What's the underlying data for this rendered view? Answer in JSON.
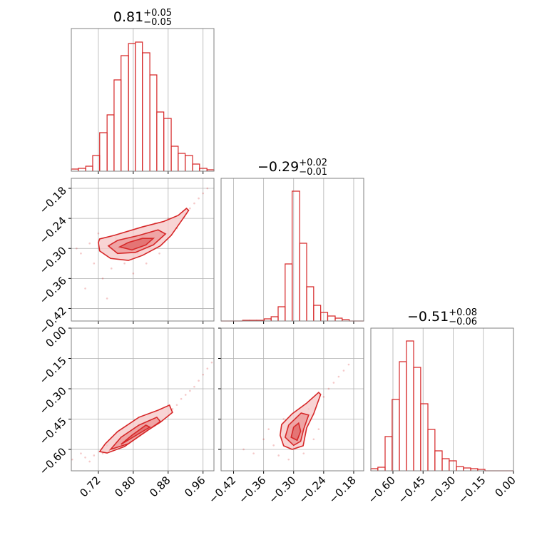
{
  "chart_data": [
    {
      "type": "histogram",
      "title": {
        "value": "0.81",
        "upper": "+0.05",
        "lower": "−0.05"
      },
      "bins": [
        0.658,
        0.674,
        0.691,
        0.707,
        0.723,
        0.74,
        0.756,
        0.772,
        0.789,
        0.805,
        0.821,
        0.838,
        0.854,
        0.87,
        0.887,
        0.903,
        0.919,
        0.936,
        0.952,
        0.969,
        0.985
      ],
      "counts": [
        3,
        4,
        7,
        22,
        54,
        79,
        128,
        162,
        179,
        181,
        166,
        135,
        83,
        74,
        35,
        25,
        22,
        10,
        4,
        2
      ],
      "xlim": [
        0.658,
        0.985
      ],
      "xticks": [
        0.72,
        0.8,
        0.88,
        0.96
      ],
      "ylim": [
        0,
        200
      ],
      "color": "#d62728",
      "grid": true,
      "xtick_labels": false,
      "ytick_labels": false
    },
    {
      "type": "contour",
      "xlim": [
        0.658,
        0.985
      ],
      "xticks": [
        0.72,
        0.8,
        0.88,
        0.96
      ],
      "ylim": [
        -0.445,
        -0.16
      ],
      "yticks": [
        {
          "value": -0.18,
          "label": "−0.18"
        },
        {
          "value": -0.24,
          "label": "−0.24"
        },
        {
          "value": -0.3,
          "label": "−0.30"
        },
        {
          "value": -0.36,
          "label": "−0.36"
        },
        {
          "value": -0.42,
          "label": "−0.42"
        }
      ],
      "points": {
        "x": [
          0.68,
          0.7,
          0.71,
          0.69,
          0.73,
          0.75,
          0.78,
          0.8,
          0.83,
          0.86,
          0.9,
          0.93,
          0.95,
          0.96,
          0.72,
          0.76,
          0.85,
          0.88,
          0.94,
          0.74,
          0.97,
          0.81,
          0.79,
          0.67
        ],
        "y": [
          -0.31,
          -0.29,
          -0.33,
          -0.38,
          -0.36,
          -0.34,
          -0.33,
          -0.35,
          -0.33,
          -0.31,
          -0.26,
          -0.22,
          -0.2,
          -0.19,
          -0.27,
          -0.28,
          -0.25,
          -0.24,
          -0.21,
          -0.4,
          -0.18,
          -0.31,
          -0.3,
          -0.3
        ]
      },
      "contours": [
        {
          "x": [
            0.72,
            0.723,
            0.748,
            0.789,
            0.821,
            0.862,
            0.887,
            0.916,
            0.927,
            0.922,
            0.903,
            0.87,
            0.821,
            0.756,
            0.723
          ],
          "y": [
            -0.288,
            -0.305,
            -0.32,
            -0.324,
            -0.314,
            -0.295,
            -0.274,
            -0.238,
            -0.224,
            -0.22,
            -0.234,
            -0.246,
            -0.257,
            -0.274,
            -0.281
          ]
        },
        {
          "x": [
            0.743,
            0.764,
            0.805,
            0.846,
            0.874,
            0.857,
            0.813,
            0.764
          ],
          "y": [
            -0.295,
            -0.31,
            -0.308,
            -0.293,
            -0.271,
            -0.263,
            -0.274,
            -0.284
          ]
        },
        {
          "x": [
            0.769,
            0.797,
            0.829,
            0.846,
            0.821,
            0.789
          ],
          "y": [
            -0.297,
            -0.303,
            -0.293,
            -0.28,
            -0.28,
            -0.288
          ]
        }
      ],
      "color": "#d62728",
      "grid": true,
      "xtick_labels": false,
      "ytick_labels": true
    },
    {
      "type": "histogram",
      "title": {
        "value": "−0.29",
        "upper": "+0.02",
        "lower": "−0.01"
      },
      "bins": [
        -0.445,
        -0.431,
        -0.416,
        -0.402,
        -0.388,
        -0.374,
        -0.359,
        -0.345,
        -0.331,
        -0.317,
        -0.303,
        -0.288,
        -0.274,
        -0.26,
        -0.246,
        -0.232,
        -0.217,
        -0.203,
        -0.189,
        -0.174,
        -0.16
      ],
      "counts": [
        0,
        0,
        0,
        1,
        1,
        1,
        3,
        6,
        20,
        80,
        182,
        109,
        48,
        22,
        12,
        7,
        4,
        2,
        0,
        0
      ],
      "xlim": [
        -0.445,
        -0.16
      ],
      "xticks": [
        -0.42,
        -0.36,
        -0.3,
        -0.24,
        -0.18
      ],
      "ylim": [
        0,
        200
      ],
      "color": "#d62728",
      "grid": true,
      "xtick_labels": false,
      "ytick_labels": false
    },
    {
      "type": "contour",
      "xlim": [
        0.658,
        0.985
      ],
      "xticks": [
        0.72,
        {
          "value": 0.8,
          "label": "0.80"
        },
        0.88,
        0.96
      ],
      "ylim": [
        -0.706,
        0
      ],
      "yticks": [
        {
          "value": 0,
          "label": "0.00"
        },
        {
          "value": -0.15,
          "label": "−0.15"
        },
        {
          "value": -0.3,
          "label": "−0.30"
        },
        {
          "value": -0.45,
          "label": "−0.45"
        },
        {
          "value": -0.6,
          "label": "−0.60"
        }
      ],
      "points": {
        "x": [
          0.66,
          0.69,
          0.71,
          0.7,
          0.73,
          0.9,
          0.91,
          0.92,
          0.93,
          0.94,
          0.95,
          0.96,
          0.97,
          0.98,
          0.68,
          0.89,
          0.74,
          0.85
        ],
        "y": [
          -0.65,
          -0.64,
          -0.63,
          -0.66,
          -0.62,
          -0.38,
          -0.35,
          -0.33,
          -0.31,
          -0.29,
          -0.26,
          -0.23,
          -0.2,
          -0.17,
          -0.62,
          -0.4,
          -0.58,
          -0.48
        ]
      },
      "contours": [
        {
          "x": [
            0.723,
            0.74,
            0.78,
            0.821,
            0.862,
            0.89,
            0.883,
            0.857,
            0.813,
            0.764,
            0.736
          ],
          "y": [
            -0.611,
            -0.618,
            -0.586,
            -0.522,
            -0.466,
            -0.417,
            -0.381,
            -0.406,
            -0.441,
            -0.512,
            -0.572
          ]
        },
        {
          "x": [
            0.748,
            0.789,
            0.829,
            0.862,
            0.854,
            0.813,
            0.772
          ],
          "y": [
            -0.6,
            -0.572,
            -0.512,
            -0.462,
            -0.441,
            -0.48,
            -0.54
          ]
        },
        {
          "x": [
            0.772,
            0.813,
            0.838,
            0.829,
            0.797
          ],
          "y": [
            -0.575,
            -0.522,
            -0.49,
            -0.48,
            -0.53
          ]
        }
      ],
      "color": "#d62728",
      "grid": true,
      "xtick_labels": true,
      "ytick_labels": true
    },
    {
      "type": "contour",
      "xlim": [
        -0.445,
        -0.16
      ],
      "xticks": [
        {
          "value": -0.42,
          "label": "−0.42"
        },
        {
          "value": -0.36,
          "label": "−0.36"
        },
        {
          "value": -0.3,
          "label": "−0.30"
        },
        {
          "value": -0.24,
          "label": "−0.24"
        },
        {
          "value": -0.18,
          "label": "−0.18"
        }
      ],
      "ylim": [
        -0.706,
        0
      ],
      "yticks": [
        0,
        -0.15,
        -0.3,
        -0.45,
        -0.6
      ],
      "points": {
        "x": [
          -0.4,
          -0.36,
          -0.34,
          -0.33,
          -0.31,
          -0.35,
          -0.28,
          -0.26,
          -0.24,
          -0.23,
          -0.22,
          -0.21,
          -0.2,
          -0.19,
          -0.38,
          -0.32,
          -0.27,
          -0.25
        ],
        "y": [
          -0.6,
          -0.55,
          -0.58,
          -0.63,
          -0.65,
          -0.5,
          -0.62,
          -0.55,
          -0.34,
          -0.3,
          -0.27,
          -0.24,
          -0.21,
          -0.18,
          -0.62,
          -0.45,
          -0.4,
          -0.5
        ]
      },
      "contours": [
        {
          "x": [
            -0.327,
            -0.32,
            -0.303,
            -0.281,
            -0.274,
            -0.26,
            -0.246,
            -0.25,
            -0.274,
            -0.303,
            -0.324
          ],
          "y": [
            -0.53,
            -0.582,
            -0.6,
            -0.582,
            -0.494,
            -0.424,
            -0.328,
            -0.318,
            -0.371,
            -0.424,
            -0.477
          ]
        },
        {
          "x": [
            -0.317,
            -0.3,
            -0.286,
            -0.28,
            -0.27,
            -0.285,
            -0.31
          ],
          "y": [
            -0.54,
            -0.58,
            -0.56,
            -0.5,
            -0.43,
            -0.42,
            -0.48
          ]
        },
        {
          "x": [
            -0.305,
            -0.293,
            -0.286,
            -0.29,
            -0.3
          ],
          "y": [
            -0.54,
            -0.555,
            -0.51,
            -0.47,
            -0.49
          ]
        }
      ],
      "color": "#d62728",
      "grid": true,
      "xtick_labels": true,
      "ytick_labels": false
    },
    {
      "type": "histogram",
      "title": {
        "value": "−0.51",
        "upper": "+0.08",
        "lower": "−0.06"
      },
      "bins": [
        -0.71,
        -0.675,
        -0.639,
        -0.604,
        -0.568,
        -0.533,
        -0.497,
        -0.462,
        -0.426,
        -0.391,
        -0.355,
        -0.32,
        -0.284,
        -0.249,
        -0.213,
        -0.178,
        -0.142,
        -0.107,
        -0.071,
        -0.036,
        0.0
      ],
      "counts": [
        3,
        5,
        48,
        100,
        153,
        182,
        145,
        94,
        58,
        28,
        17,
        14,
        6,
        4,
        3,
        2,
        0,
        0,
        0,
        0
      ],
      "xlim": [
        -0.71,
        0
      ],
      "xticks": [
        {
          "value": -0.6,
          "label": "−0.60"
        },
        {
          "value": -0.45,
          "label": "−0.45"
        },
        {
          "value": -0.3,
          "label": "−0.30"
        },
        {
          "value": -0.15,
          "label": "−0.15"
        },
        {
          "value": 0,
          "label": "0.00"
        }
      ],
      "ylim": [
        0,
        200
      ],
      "color": "#d62728",
      "grid": true,
      "xtick_labels": true,
      "ytick_labels": false
    }
  ]
}
